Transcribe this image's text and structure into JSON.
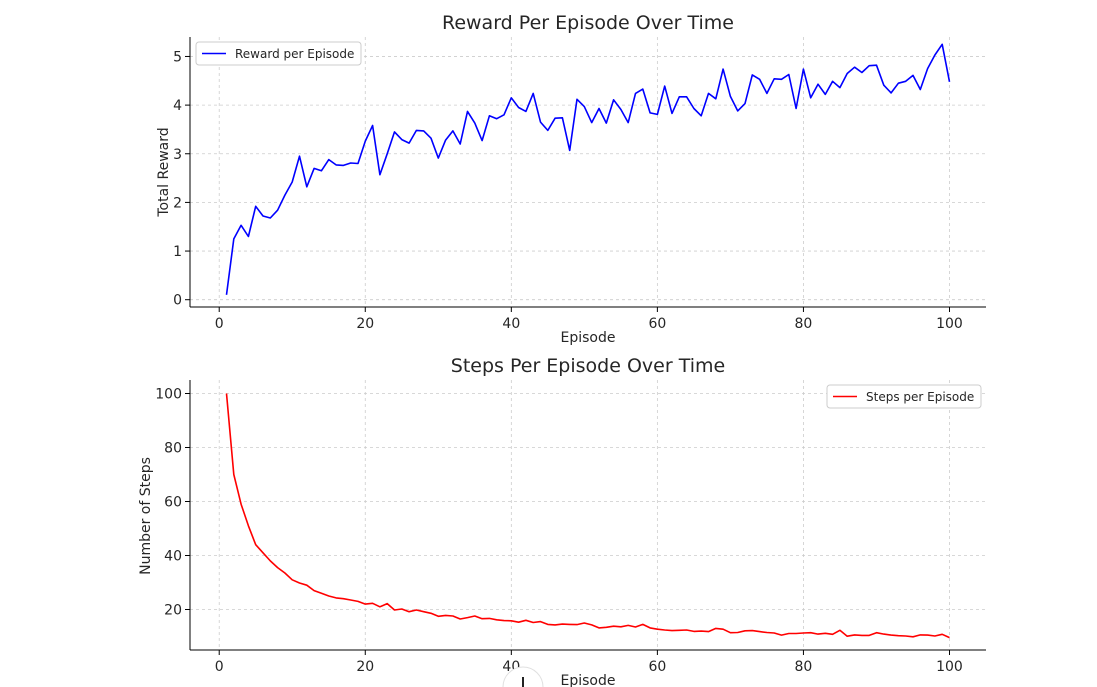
{
  "chart_data": [
    {
      "type": "line",
      "title": "Reward Per Episode Over Time",
      "xlabel": "Episode",
      "ylabel": "Total Reward",
      "xlim": [
        -4,
        105
      ],
      "ylim": [
        -0.15,
        5.4
      ],
      "xticks": [
        0,
        20,
        40,
        60,
        80,
        100
      ],
      "yticks": [
        0,
        1,
        2,
        3,
        4,
        5
      ],
      "grid": true,
      "legend_position": "top-left",
      "series": [
        {
          "name": "Reward per Episode",
          "color": "#0000ff",
          "x": [
            1,
            2,
            3,
            4,
            5,
            6,
            7,
            8,
            9,
            10,
            11,
            12,
            13,
            14,
            15,
            16,
            17,
            18,
            19,
            20,
            21,
            22,
            23,
            24,
            25,
            26,
            27,
            28,
            29,
            30,
            31,
            32,
            33,
            34,
            35,
            36,
            37,
            38,
            39,
            40,
            41,
            42,
            43,
            44,
            45,
            46,
            47,
            48,
            49,
            50,
            51,
            52,
            53,
            54,
            55,
            56,
            57,
            58,
            59,
            60,
            61,
            62,
            63,
            64,
            65,
            66,
            67,
            68,
            69,
            70,
            71,
            72,
            73,
            74,
            75,
            76,
            77,
            78,
            79,
            80,
            81,
            82,
            83,
            84,
            85,
            86,
            87,
            88,
            89,
            90,
            91,
            92,
            93,
            94,
            95,
            96,
            97,
            98,
            99,
            100
          ],
          "values": [
            0.1,
            1.25,
            1.53,
            1.3,
            1.92,
            1.72,
            1.68,
            1.84,
            2.15,
            2.42,
            2.95,
            2.32,
            2.7,
            2.65,
            2.88,
            2.77,
            2.76,
            2.81,
            2.8,
            3.26,
            3.58,
            2.57,
            3.0,
            3.45,
            3.29,
            3.22,
            3.48,
            3.47,
            3.32,
            2.91,
            3.28,
            3.47,
            3.2,
            3.87,
            3.63,
            3.27,
            3.78,
            3.72,
            3.8,
            4.15,
            3.95,
            3.87,
            4.24,
            3.65,
            3.48,
            3.73,
            3.74,
            3.07,
            4.12,
            3.97,
            3.64,
            3.93,
            3.63,
            4.11,
            3.91,
            3.64,
            4.24,
            4.33,
            3.84,
            3.81,
            4.39,
            3.83,
            4.17,
            4.17,
            3.93,
            3.78,
            4.24,
            4.13,
            4.74,
            4.18,
            3.88,
            4.03,
            4.62,
            4.53,
            4.24,
            4.54,
            4.53,
            4.63,
            3.93,
            4.74,
            4.15,
            4.43,
            4.22,
            4.49,
            4.36,
            4.65,
            4.78,
            4.67,
            4.81,
            4.82,
            4.41,
            4.25,
            4.45,
            4.49,
            4.61,
            4.32,
            4.75,
            5.03,
            5.25,
            4.48
          ]
        }
      ]
    },
    {
      "type": "line",
      "title": "Steps Per Episode Over Time",
      "xlabel": "Episode",
      "ylabel": "Number of Steps",
      "xlim": [
        -4,
        105
      ],
      "ylim": [
        5,
        105
      ],
      "xticks": [
        0,
        20,
        40,
        60,
        80,
        100
      ],
      "yticks": [
        20,
        40,
        60,
        80,
        100
      ],
      "grid": true,
      "legend_position": "top-right",
      "series": [
        {
          "name": "Steps per Episode",
          "color": "#ff0000",
          "x": [
            1,
            2,
            3,
            4,
            5,
            6,
            7,
            8,
            9,
            10,
            11,
            12,
            13,
            14,
            15,
            16,
            17,
            18,
            19,
            20,
            21,
            22,
            23,
            24,
            25,
            26,
            27,
            28,
            29,
            30,
            31,
            32,
            33,
            34,
            35,
            36,
            37,
            38,
            39,
            40,
            41,
            42,
            43,
            44,
            45,
            46,
            47,
            48,
            49,
            50,
            51,
            52,
            53,
            54,
            55,
            56,
            57,
            58,
            59,
            60,
            61,
            62,
            63,
            64,
            65,
            66,
            67,
            68,
            69,
            70,
            71,
            72,
            73,
            74,
            75,
            76,
            77,
            78,
            79,
            80,
            81,
            82,
            83,
            84,
            85,
            86,
            87,
            88,
            89,
            90,
            91,
            92,
            93,
            94,
            95,
            96,
            97,
            98,
            99,
            100
          ],
          "values": [
            100,
            70,
            59,
            51,
            44,
            41,
            38,
            35.5,
            33.5,
            31,
            29.8,
            29,
            27,
            26,
            25,
            24.3,
            24,
            23.5,
            23,
            22,
            22.3,
            21,
            22.2,
            19.8,
            20.2,
            19.2,
            19.8,
            19.2,
            18.6,
            17.5,
            17.8,
            17.6,
            16.5,
            17,
            17.6,
            16.6,
            16.7,
            16.2,
            15.9,
            15.8,
            15.3,
            16,
            15.2,
            15.5,
            14.5,
            14.3,
            14.6,
            14.5,
            14.4,
            15,
            14.3,
            13.2,
            13.4,
            13.8,
            13.6,
            14.1,
            13.5,
            14.5,
            13.2,
            12.7,
            12.4,
            12.2,
            12.3,
            12.4,
            11.9,
            12,
            11.8,
            13,
            12.7,
            11.4,
            11.5,
            12.1,
            12.2,
            11.8,
            11.5,
            11.3,
            10.5,
            11.1,
            11.1,
            11.3,
            11.4,
            10.9,
            11.2,
            10.8,
            12.3,
            10.1,
            10.6,
            10.4,
            10.4,
            11.4,
            10.9,
            10.5,
            10.3,
            10.2,
            9.9,
            10.6,
            10.5,
            10.2,
            10.8,
            9.6
          ]
        }
      ]
    },
    {
      "ui": {
        "scroll_icon": "arrow-down-icon"
      }
    }
  ]
}
